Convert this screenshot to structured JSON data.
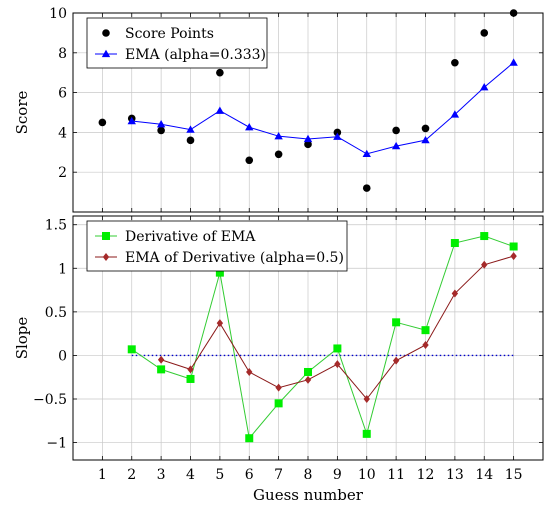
{
  "chart_data": [
    {
      "type": "scatter+line",
      "ylabel": "Score",
      "xlabel": "",
      "xlim": [
        0,
        16
      ],
      "ylim": [
        0,
        10
      ],
      "yticks": [
        2,
        4,
        6,
        8,
        10
      ],
      "grid": true,
      "legend_position": "top-left",
      "series": [
        {
          "name": "Score Points",
          "type": "scatter",
          "color": "#000000",
          "marker": "circle",
          "x": [
            1,
            2,
            3,
            4,
            5,
            6,
            7,
            8,
            9,
            10,
            11,
            12,
            13,
            14,
            15
          ],
          "y": [
            4.5,
            4.7,
            4.1,
            3.6,
            7.0,
            2.6,
            2.9,
            3.4,
            4.0,
            1.2,
            4.1,
            4.2,
            7.5,
            9.0,
            10.0
          ]
        },
        {
          "name": "EMA (alpha=0.333)",
          "type": "line",
          "color": "#0000ff",
          "marker": "triangle",
          "x": [
            2,
            3,
            4,
            5,
            6,
            7,
            8,
            9,
            10,
            11,
            12,
            13,
            14,
            15
          ],
          "y": [
            4.57,
            4.41,
            4.14,
            5.09,
            4.26,
            3.81,
            3.67,
            3.78,
            2.92,
            3.31,
            3.61,
            4.9,
            6.27,
            7.51
          ]
        }
      ]
    },
    {
      "type": "line",
      "ylabel": "Slope",
      "xlabel": "Guess number",
      "xlim": [
        0,
        16
      ],
      "ylim": [
        -1.2,
        1.6
      ],
      "yticks": [
        -1,
        -0.5,
        0,
        0.5,
        1,
        1.5
      ],
      "ytick_labels": [
        "−1",
        "−0.5",
        "0",
        "0.5",
        "1",
        "1.5"
      ],
      "xticks": [
        "1",
        "2",
        "3",
        "4",
        "5",
        "6",
        "7",
        "8",
        "9",
        "10",
        "11",
        "12",
        "13",
        "14",
        "15"
      ],
      "grid": true,
      "legend_position": "top-left",
      "reference_line": {
        "y": 0,
        "x_from": 2,
        "x_to": 15,
        "color": "#0000cc",
        "style": "dotted"
      },
      "series": [
        {
          "name": "Derivative of EMA",
          "color": "#00ee00",
          "line_color": "#33cc33",
          "marker": "square",
          "x": [
            2,
            3,
            4,
            5,
            6,
            7,
            8,
            9,
            10,
            11,
            12,
            13,
            14,
            15
          ],
          "y": [
            0.07,
            -0.16,
            -0.27,
            0.95,
            -0.95,
            -0.55,
            -0.19,
            0.08,
            -0.9,
            0.38,
            0.29,
            1.29,
            1.37,
            1.25
          ]
        },
        {
          "name": "EMA of Derivative (alpha=0.5)",
          "color": "#a52a2a",
          "line_color": "#8b1a1a",
          "marker": "diamond",
          "x": [
            3,
            4,
            5,
            6,
            7,
            8,
            9,
            10,
            11,
            12,
            13,
            14,
            15
          ],
          "y": [
            -0.05,
            -0.16,
            0.37,
            -0.19,
            -0.37,
            -0.28,
            -0.1,
            -0.5,
            -0.06,
            0.12,
            0.71,
            1.04,
            1.14
          ]
        }
      ]
    }
  ]
}
